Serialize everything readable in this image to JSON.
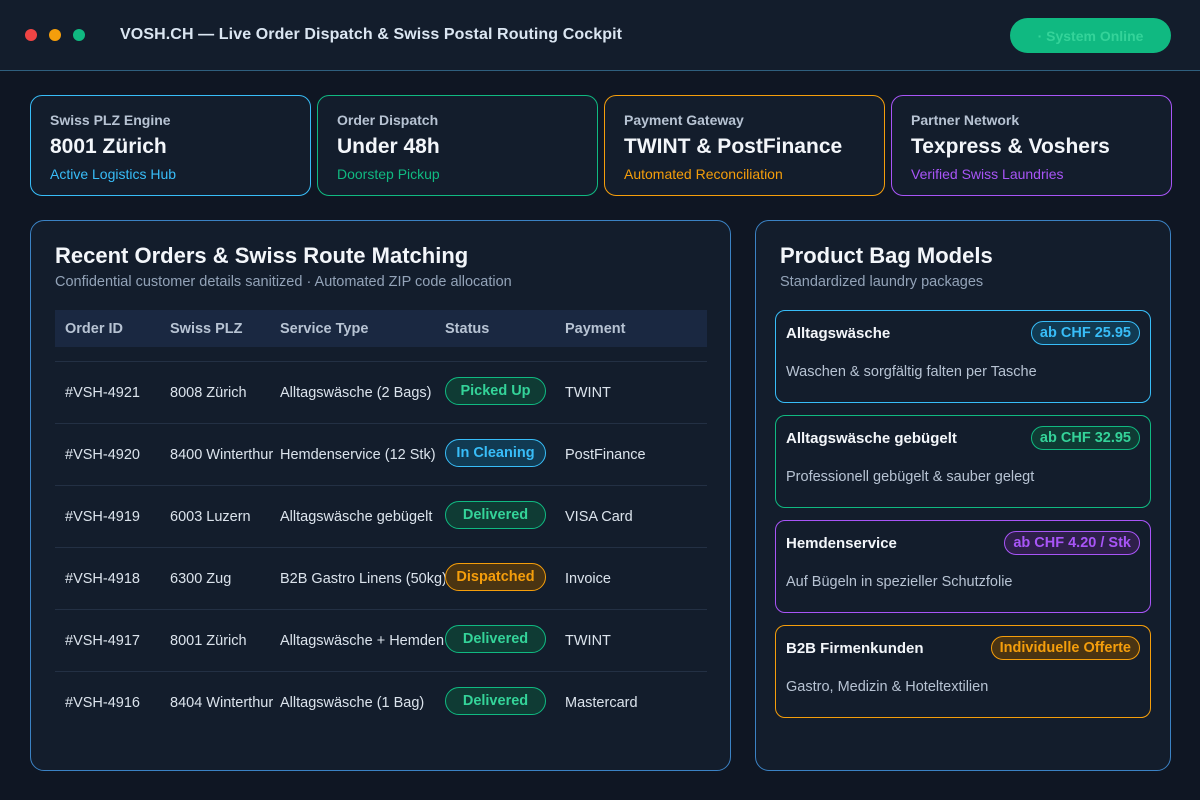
{
  "window": {
    "title": "VOSH.CH — Live Order Dispatch & Swiss Postal Routing Cockpit",
    "status": "· System Online"
  },
  "kpis": [
    {
      "label": "Swiss PLZ Engine",
      "value": "8001 Zürich",
      "sub": "Active Logistics Hub"
    },
    {
      "label": "Order Dispatch",
      "value": "Under 48h",
      "sub": "Doorstep Pickup"
    },
    {
      "label": "Payment Gateway",
      "value": "TWINT & PostFinance",
      "sub": "Automated Reconciliation"
    },
    {
      "label": "Partner Network",
      "value": "Texpress & Voshers",
      "sub": "Verified Swiss Laundries"
    }
  ],
  "orders": {
    "title": "Recent Orders & Swiss Route Matching",
    "subtitle": "Confidential customer details sanitized · Automated ZIP code allocation",
    "columns": [
      "Order ID",
      "Swiss PLZ",
      "Service Type",
      "Status",
      "Payment"
    ],
    "rows": [
      {
        "id": "#VSH-4921",
        "plz": "8008 Zürich",
        "service": "Alltagswäsche (2 Bags)",
        "status": "Picked Up",
        "payment": "TWINT"
      },
      {
        "id": "#VSH-4920",
        "plz": "8400 Winterthur",
        "service": "Hemdenservice (12 Stk)",
        "status": "In Cleaning",
        "payment": "PostFinance"
      },
      {
        "id": "#VSH-4919",
        "plz": "6003 Luzern",
        "service": "Alltagswäsche gebügelt",
        "status": "Delivered",
        "payment": "VISA Card"
      },
      {
        "id": "#VSH-4918",
        "plz": "6300 Zug",
        "service": "B2B Gastro Linens (50kg)",
        "status": "Dispatched",
        "payment": "Invoice"
      },
      {
        "id": "#VSH-4917",
        "plz": "8001 Zürich",
        "service": "Alltagswäsche + Hemden",
        "status": "Delivered",
        "payment": "TWINT"
      },
      {
        "id": "#VSH-4916",
        "plz": "8404 Winterthur",
        "service": "Alltagswäsche (1 Bag)",
        "status": "Delivered",
        "payment": "Mastercard"
      }
    ]
  },
  "products": {
    "title": "Product Bag Models",
    "subtitle": "Standardized laundry packages",
    "items": [
      {
        "name": "Alltagswäsche",
        "price": "ab CHF 25.95",
        "desc": "Waschen & sorgfältig falten per Tasche"
      },
      {
        "name": "Alltagswäsche gebügelt",
        "price": "ab CHF 32.95",
        "desc": "Professionell gebügelt & sauber gelegt"
      },
      {
        "name": "Hemdenservice",
        "price": "ab CHF 4.20 / Stk",
        "desc": "Auf Bügeln in spezieller Schutzfolie"
      },
      {
        "name": "B2B Firmenkunden",
        "price": "Individuelle Offerte",
        "desc": "Gastro, Medizin & Hoteltextilien"
      }
    ]
  },
  "colors": {
    "background": "#0f1623",
    "panel": "#131d2c",
    "accent_blue": "#38bdf8",
    "accent_green": "#10b981",
    "accent_amber": "#f59e0b",
    "accent_purple": "#a855f7"
  }
}
